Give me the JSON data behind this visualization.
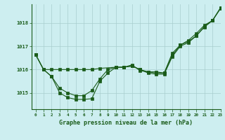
{
  "bg_color": "#cdeef0",
  "grid_color": "#a8cece",
  "line_color": "#1a5c1a",
  "xlabel": "Graphe pression niveau de la mer (hPa)",
  "xlim": [
    -0.5,
    23
  ],
  "ylim": [
    1014.3,
    1018.8
  ],
  "yticks": [
    1015,
    1016,
    1017,
    1018
  ],
  "xticks": [
    0,
    1,
    2,
    3,
    4,
    5,
    6,
    7,
    8,
    9,
    10,
    11,
    12,
    13,
    14,
    15,
    16,
    17,
    18,
    19,
    20,
    21,
    22,
    23
  ],
  "series1_x": [
    0,
    1,
    2,
    3,
    4,
    5,
    6,
    7,
    8,
    9,
    10,
    11,
    12,
    13,
    14,
    15,
    16,
    17,
    18,
    19,
    20,
    21,
    22,
    23
  ],
  "series1_y": [
    1016.65,
    1016.0,
    1015.7,
    1015.0,
    1014.8,
    1014.72,
    1014.72,
    1014.75,
    1015.5,
    1015.85,
    1016.1,
    1016.1,
    1016.15,
    1016.0,
    1015.85,
    1015.8,
    1015.8,
    1016.55,
    1017.0,
    1017.15,
    1017.45,
    1017.85,
    1018.1,
    1018.62
  ],
  "series2_x": [
    0,
    1,
    2,
    3,
    4,
    5,
    6,
    7,
    8,
    9,
    10,
    11,
    12,
    13,
    14,
    15,
    16,
    17,
    18,
    19,
    20,
    21,
    22,
    23
  ],
  "series2_y": [
    1016.65,
    1016.0,
    1015.7,
    1015.2,
    1015.0,
    1014.88,
    1014.88,
    1015.1,
    1015.6,
    1016.0,
    1016.1,
    1016.1,
    1016.2,
    1015.95,
    1015.9,
    1015.9,
    1015.85,
    1016.6,
    1017.05,
    1017.25,
    1017.55,
    1017.9,
    1018.1,
    1018.65
  ],
  "series3_x": [
    0,
    1,
    2,
    3,
    4,
    5,
    6,
    7,
    8,
    10,
    11,
    12,
    13,
    14,
    15,
    16,
    17,
    18,
    19,
    20,
    21,
    22,
    23
  ],
  "series3_y": [
    1016.65,
    1016.0,
    1016.0,
    1016.0,
    1016.0,
    1016.0,
    1016.0,
    1016.0,
    1016.05,
    1016.1,
    1016.1,
    1016.15,
    1016.0,
    1015.9,
    1015.85,
    1015.85,
    1016.7,
    1017.05,
    1017.2,
    1017.45,
    1017.82,
    1018.1,
    1018.62
  ]
}
